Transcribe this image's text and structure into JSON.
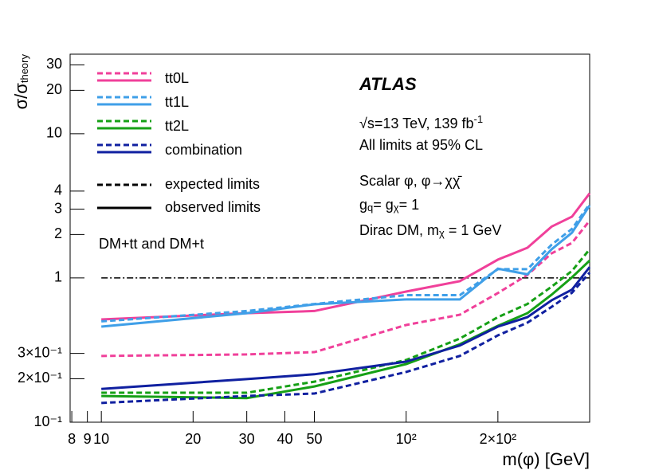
{
  "chart_data": {
    "type": "line",
    "experiment": "ATLAS",
    "annotations": [
      [
        {
          "t": "√s=13 TeV, 139 fb"
        },
        {
          "t": "-1",
          "sup": true
        }
      ],
      [
        {
          "t": "All limits at 95% CL"
        }
      ],
      [
        {
          "t": "Scalar φ, φ→χχ̄"
        }
      ],
      [
        {
          "t": "g"
        },
        {
          "t": "q",
          "sub": true
        },
        {
          "t": "= g"
        },
        {
          "t": "χ",
          "sub": true
        },
        {
          "t": "= 1"
        }
      ],
      [
        {
          "t": "Dirac DM, m"
        },
        {
          "t": "χ",
          "sub": true
        },
        {
          "t": " = 1 GeV"
        }
      ],
      [
        {
          "t": "DM+tt and DM+t"
        }
      ]
    ],
    "xlabel": "m(φ) [GeV]",
    "ylabel": [
      {
        "t": "σ/σ"
      },
      {
        "t": "theory",
        "sub": true
      }
    ],
    "x": [
      10,
      30,
      50,
      100,
      150,
      200,
      250,
      300,
      350,
      400
    ],
    "series": [
      {
        "name": "tt0L",
        "color": "#f0409a",
        "values": [
          0.516,
          0.57,
          0.59,
          0.805,
          0.95,
          1.34,
          1.62,
          2.27,
          2.66,
          3.86
        ],
        "expected": [
          0.288,
          0.295,
          0.306,
          0.472,
          0.556,
          0.786,
          1.05,
          1.48,
          1.75,
          2.5
        ]
      },
      {
        "name": "tt1L",
        "color": "#3f9fe8",
        "values": [
          0.46,
          0.57,
          0.657,
          0.71,
          0.71,
          1.16,
          1.06,
          1.58,
          2.06,
          3.18
        ],
        "expected": [
          0.5,
          0.59,
          0.66,
          0.76,
          0.76,
          1.15,
          1.15,
          1.7,
          2.19,
          3.26
        ]
      },
      {
        "name": "tt2L",
        "color": "#16a016",
        "values": [
          0.152,
          0.147,
          0.177,
          0.253,
          0.347,
          0.466,
          0.57,
          0.765,
          1.01,
          1.32
        ],
        "expected": [
          0.16,
          0.16,
          0.191,
          0.27,
          0.38,
          0.535,
          0.66,
          0.87,
          1.12,
          1.58
        ]
      },
      {
        "name": "combination",
        "color": "#1020a0",
        "values": [
          0.17,
          0.199,
          0.215,
          0.263,
          0.34,
          0.46,
          0.535,
          0.7,
          0.83,
          1.19
        ],
        "expected": [
          0.136,
          0.152,
          0.158,
          0.223,
          0.288,
          0.4,
          0.49,
          0.63,
          0.79,
          1.09
        ]
      }
    ],
    "line_styles": [
      {
        "name": "expected limits",
        "dashed": true
      },
      {
        "name": "observed limits",
        "dashed": false
      }
    ],
    "reference_line": 1,
    "xlim": [
      7.9,
      400
    ],
    "ylim": [
      0.1,
      35.6
    ],
    "xscale": "log",
    "yscale": "log",
    "xticks": [
      8,
      9,
      10,
      20,
      30,
      40,
      50,
      {
        "value": 100,
        "label": "10²"
      },
      {
        "value": 200,
        "label": "2×10²"
      }
    ],
    "yticks": [
      {
        "value": 0.1,
        "label": "10⁻¹"
      },
      {
        "value": 0.2,
        "label": "2×10⁻¹"
      },
      {
        "value": 0.3,
        "label": "3×10⁻¹"
      },
      1,
      2,
      3,
      4,
      10,
      20,
      30
    ]
  }
}
